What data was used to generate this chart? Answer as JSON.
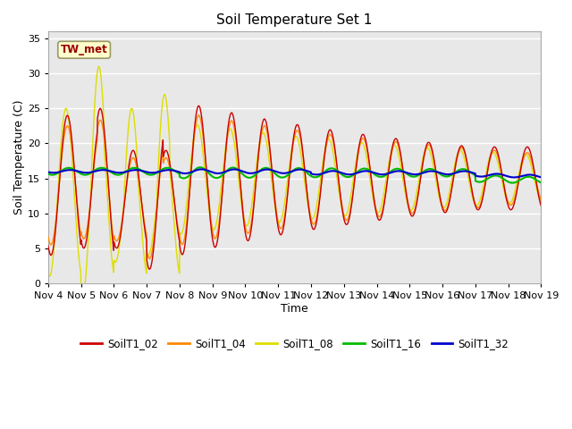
{
  "title": "Soil Temperature Set 1",
  "xlabel": "Time",
  "ylabel": "Soil Temperature (C)",
  "ylim": [
    0,
    36
  ],
  "yticks": [
    0,
    5,
    10,
    15,
    20,
    25,
    30,
    35
  ],
  "plot_bg_color": "#e8e8e8",
  "fig_bg_color": "#ffffff",
  "tw_met_label": "TW_met",
  "tw_met_color": "#990000",
  "tw_met_box_face": "#ffffcc",
  "tw_met_box_edge": "#999966",
  "series_colors": {
    "SoilT1_02": "#cc0000",
    "SoilT1_04": "#ff8800",
    "SoilT1_08": "#dddd00",
    "SoilT1_16": "#00bb00",
    "SoilT1_32": "#0000cc"
  },
  "xtick_labels": [
    "Nov 4",
    "Nov 5",
    "Nov 6",
    "Nov 7",
    "Nov 8",
    "Nov 9",
    "Nov 10",
    "Nov 11",
    "Nov 12",
    "Nov 13",
    "Nov 14",
    "Nov 15",
    "Nov 16",
    "Nov 17",
    "Nov 18",
    "Nov 19"
  ],
  "legend_entries": [
    "SoilT1_02",
    "SoilT1_04",
    "SoilT1_08",
    "SoilT1_16",
    "SoilT1_32"
  ]
}
